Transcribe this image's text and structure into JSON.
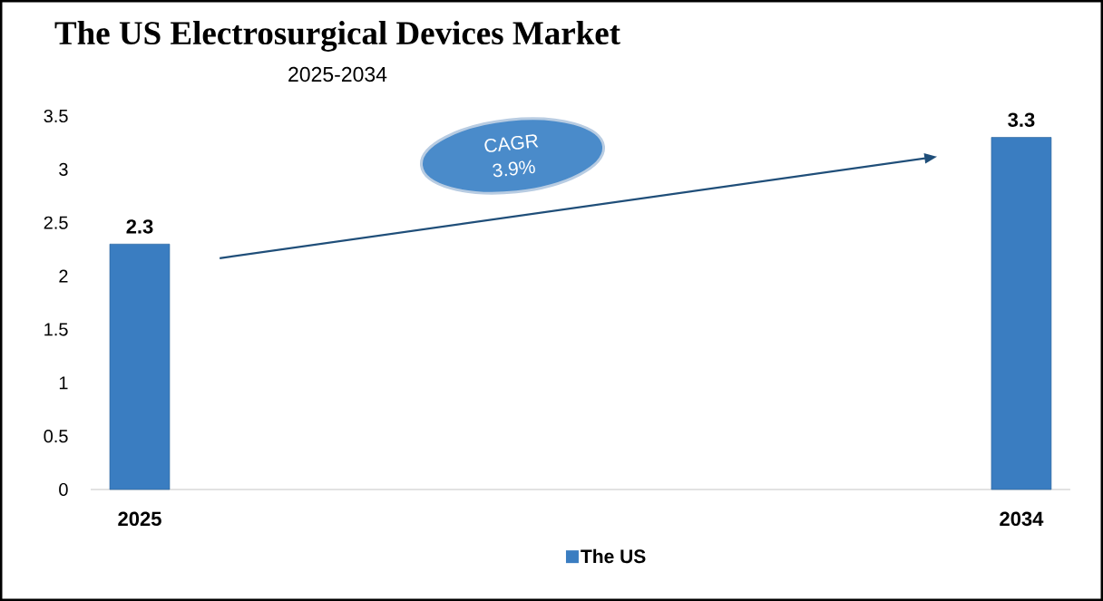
{
  "chart_data": {
    "type": "bar",
    "title": "The US Electrosurgical Devices Market",
    "subtitle": "2025-2034",
    "categories": [
      "2025",
      null,
      null,
      null,
      null,
      null,
      null,
      null,
      null,
      "2034"
    ],
    "series": [
      {
        "name": "The US",
        "color": "#3a7dc1",
        "values": [
          2.3,
          null,
          null,
          null,
          null,
          null,
          null,
          null,
          null,
          3.3
        ]
      }
    ],
    "ylim": [
      0,
      3.5
    ],
    "yticks": [
      0,
      0.5,
      1,
      1.5,
      2,
      2.5,
      3,
      3.5
    ],
    "data_labels": true,
    "legend": "bottom",
    "annotations": [
      "CAGR 3.9%"
    ]
  }
}
